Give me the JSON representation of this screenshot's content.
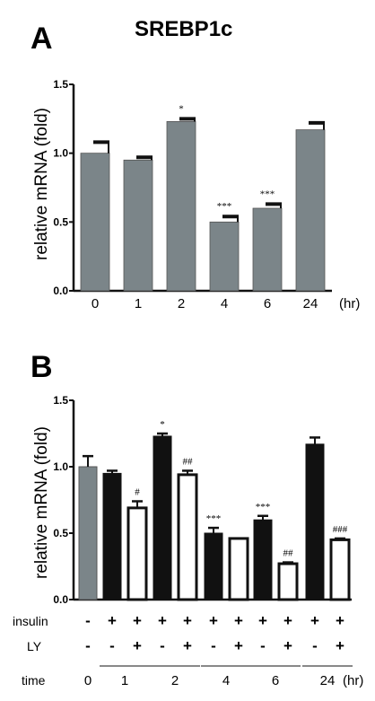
{
  "title": "SREBP1c",
  "chart_data": [
    {
      "panel": "A",
      "type": "bar",
      "ylabel": "relative mRNA (fold)",
      "x_unit": "(hr)",
      "ylim": [
        0,
        1.5
      ],
      "y_ticks": [
        "0.0",
        "0.5",
        "1.0",
        "1.5"
      ],
      "categories": [
        "0",
        "1",
        "2",
        "4",
        "6",
        "24"
      ],
      "values": [
        1.0,
        0.95,
        1.23,
        0.5,
        0.6,
        1.17
      ],
      "errors": [
        0.08,
        0.02,
        0.02,
        0.04,
        0.03,
        0.05
      ],
      "annotations": [
        "",
        "",
        "*",
        "***",
        "***",
        ""
      ],
      "bar_color": "#7b8589"
    },
    {
      "panel": "B",
      "type": "bar",
      "ylabel": "relative mRNA (fold)",
      "ylim": [
        0,
        1.5
      ],
      "y_ticks": [
        "0.0",
        "0.5",
        "1.0",
        "1.5"
      ],
      "groups": [
        "0",
        "1",
        "2",
        "4",
        "6",
        "24"
      ],
      "x_unit": "(hr)",
      "row_labels": {
        "insulin": "insulin",
        "ly": "LY",
        "time": "time"
      },
      "bars": [
        {
          "group": "0",
          "insulin": "-",
          "ly": "-",
          "value": 1.0,
          "error": 0.08,
          "label": "",
          "style": "gray"
        },
        {
          "group": "1",
          "insulin": "+",
          "ly": "-",
          "value": 0.95,
          "error": 0.02,
          "label": "",
          "style": "black"
        },
        {
          "group": "1",
          "insulin": "+",
          "ly": "+",
          "value": 0.69,
          "error": 0.05,
          "label": "#",
          "style": "white"
        },
        {
          "group": "2",
          "insulin": "+",
          "ly": "-",
          "value": 1.23,
          "error": 0.02,
          "label": "*",
          "style": "black"
        },
        {
          "group": "2",
          "insulin": "+",
          "ly": "+",
          "value": 0.94,
          "error": 0.03,
          "label": "##",
          "style": "white"
        },
        {
          "group": "4",
          "insulin": "+",
          "ly": "-",
          "value": 0.5,
          "error": 0.04,
          "label": "***",
          "style": "black"
        },
        {
          "group": "4",
          "insulin": "+",
          "ly": "+",
          "value": 0.46,
          "error": 0.0,
          "label": "",
          "style": "white"
        },
        {
          "group": "6",
          "insulin": "+",
          "ly": "-",
          "value": 0.6,
          "error": 0.03,
          "label": "***",
          "style": "black"
        },
        {
          "group": "6",
          "insulin": "+",
          "ly": "+",
          "value": 0.27,
          "error": 0.01,
          "label": "##",
          "style": "white"
        },
        {
          "group": "24",
          "insulin": "+",
          "ly": "-",
          "value": 1.17,
          "error": 0.05,
          "label": "",
          "style": "black"
        },
        {
          "group": "24",
          "insulin": "+",
          "ly": "+",
          "value": 0.45,
          "error": 0.01,
          "label": "###",
          "style": "white"
        }
      ],
      "colors": {
        "gray": "#7b8589",
        "black": "#111111",
        "white": "#ffffff"
      }
    }
  ]
}
